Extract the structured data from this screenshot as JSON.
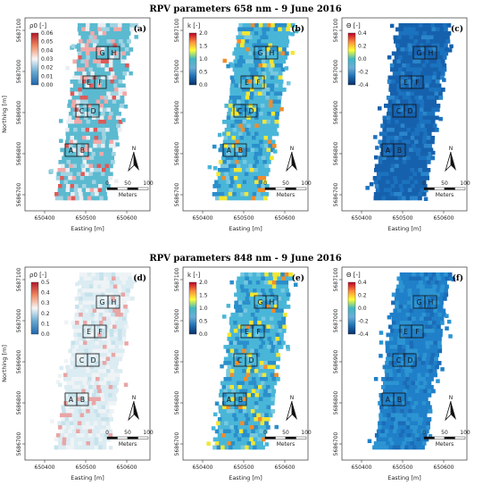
{
  "titles": {
    "top": "RPV parameters 658 nm - 9 June 2016",
    "bottom": "RPV parameters 848 nm - 9 June 2016"
  },
  "axes": {
    "xlabel": "Easting [m]",
    "ylabel": "Northing [m]",
    "x_ticks": [
      "650400",
      "650500",
      "650600"
    ],
    "y_ticks": [
      "5687100",
      "5687000",
      "5686900",
      "5686800",
      "5686700"
    ]
  },
  "scalebar": {
    "north": "N",
    "ticks": [
      "0",
      "50",
      "100"
    ],
    "unit": "Meters"
  },
  "plot_labels": [
    "G",
    "H",
    "E",
    "F",
    "C",
    "D",
    "A",
    "B"
  ],
  "colors": {
    "rho_ramp": [
      "#2166ac",
      "#67a9cf",
      "#f7f7f7",
      "#ef8a62",
      "#b2182b"
    ],
    "k_ramp": [
      "#08306b",
      "#2171b5",
      "#6baed6",
      "#41b6c4",
      "#ffff33",
      "#fd8d3c",
      "#bd0026"
    ],
    "theta_ramp": [
      "#08306b",
      "#2171b5",
      "#6baed6",
      "#41b6c4",
      "#ffff33",
      "#fd8d3c",
      "#bd0026"
    ]
  },
  "panels": [
    {
      "id": "a",
      "label": "(a)",
      "param": "rho",
      "legend_title": "ρ0 [-]",
      "legend_ticks": [
        "0.06",
        "0.05",
        "0.04",
        "0.03",
        "0.02",
        "0.01",
        "0.00"
      ]
    },
    {
      "id": "b",
      "label": "(b)",
      "param": "k",
      "legend_title": "k [-]",
      "legend_ticks": [
        "2.0",
        "1.5",
        "1.0",
        "0.5",
        "0.0"
      ]
    },
    {
      "id": "c",
      "label": "(c)",
      "param": "theta",
      "legend_title": "Θ [-]",
      "legend_ticks": [
        "0.4",
        "0.2",
        "0.0",
        "-0.2",
        "-0.4"
      ]
    },
    {
      "id": "d",
      "label": "(d)",
      "param": "rho",
      "legend_title": "ρ0 [-]",
      "legend_ticks": [
        "0.5",
        "0.4",
        "0.3",
        "0.2",
        "0.1",
        "0.0"
      ]
    },
    {
      "id": "e",
      "label": "(e)",
      "param": "k",
      "legend_title": "k [-]",
      "legend_ticks": [
        "2.0",
        "1.5",
        "1.0",
        "0.5",
        "0.0"
      ]
    },
    {
      "id": "f",
      "label": "(f)",
      "param": "theta",
      "legend_title": "Θ [-]",
      "legend_ticks": [
        "0.4",
        "0.2",
        "0.0",
        "-0.2",
        "-0.4"
      ]
    }
  ]
}
